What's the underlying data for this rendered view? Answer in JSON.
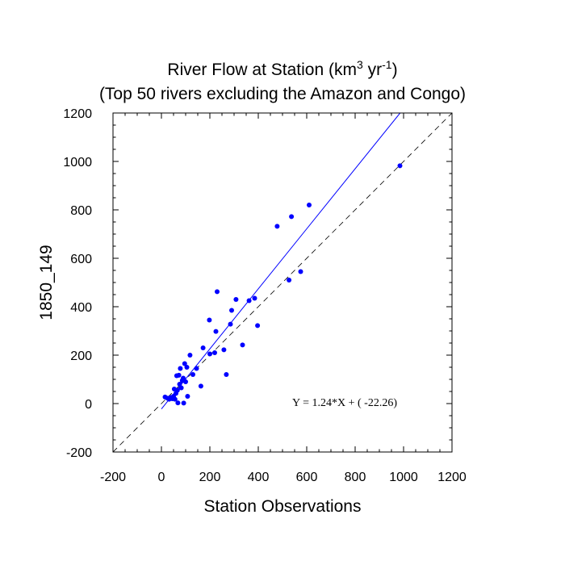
{
  "chart_data": {
    "type": "scatter",
    "title_main": "River Flow at Station (km",
    "title_sup1": "3",
    "title_mid": " yr",
    "title_sup2": "-1",
    "title_end": ")",
    "subtitle": "(Top 50 rivers excluding the Amazon and Congo)",
    "xlabel": "Station Observations",
    "ylabel": "1850_149",
    "xlim": [
      -200,
      1200
    ],
    "ylim": [
      -200,
      1200
    ],
    "x_ticks": [
      -200,
      0,
      200,
      400,
      600,
      800,
      1000,
      1200
    ],
    "y_ticks": [
      -200,
      0,
      200,
      400,
      600,
      800,
      1000,
      1200
    ],
    "x_tick_labels": [
      "-200",
      "0",
      "200",
      "400",
      "600",
      "800",
      "1000",
      "1200"
    ],
    "y_tick_labels": [
      "-200",
      "0",
      "200",
      "400",
      "600",
      "800",
      "1000",
      "1200"
    ],
    "grid": false,
    "point_color": "#0000ff",
    "fit_line": {
      "slope": 1.24,
      "intercept": -22.26,
      "color": "#0000ff"
    },
    "identity_line": {
      "color": "#000000",
      "style": "dashed"
    },
    "equation_text": "Y =  1.24*X + (  -22.26)",
    "points": [
      {
        "x": 15,
        "y": 27
      },
      {
        "x": 25,
        "y": 22
      },
      {
        "x": 32,
        "y": 18
      },
      {
        "x": 38,
        "y": 25
      },
      {
        "x": 45,
        "y": 20
      },
      {
        "x": 50,
        "y": 30
      },
      {
        "x": 53,
        "y": 60
      },
      {
        "x": 56,
        "y": 18
      },
      {
        "x": 60,
        "y": 42
      },
      {
        "x": 63,
        "y": 115
      },
      {
        "x": 66,
        "y": 55
      },
      {
        "x": 68,
        "y": 3
      },
      {
        "x": 72,
        "y": 117
      },
      {
        "x": 75,
        "y": 80
      },
      {
        "x": 78,
        "y": 145
      },
      {
        "x": 82,
        "y": 65
      },
      {
        "x": 86,
        "y": 95
      },
      {
        "x": 90,
        "y": 105
      },
      {
        "x": 92,
        "y": 2
      },
      {
        "x": 96,
        "y": 165
      },
      {
        "x": 100,
        "y": 90
      },
      {
        "x": 105,
        "y": 150
      },
      {
        "x": 108,
        "y": 30
      },
      {
        "x": 118,
        "y": 200
      },
      {
        "x": 130,
        "y": 120
      },
      {
        "x": 145,
        "y": 145
      },
      {
        "x": 163,
        "y": 72
      },
      {
        "x": 172,
        "y": 230
      },
      {
        "x": 198,
        "y": 345
      },
      {
        "x": 200,
        "y": 205
      },
      {
        "x": 220,
        "y": 210
      },
      {
        "x": 225,
        "y": 298
      },
      {
        "x": 230,
        "y": 462
      },
      {
        "x": 258,
        "y": 222
      },
      {
        "x": 268,
        "y": 120
      },
      {
        "x": 285,
        "y": 328
      },
      {
        "x": 290,
        "y": 385
      },
      {
        "x": 308,
        "y": 430
      },
      {
        "x": 335,
        "y": 242
      },
      {
        "x": 362,
        "y": 425
      },
      {
        "x": 385,
        "y": 435
      },
      {
        "x": 397,
        "y": 322
      },
      {
        "x": 478,
        "y": 732
      },
      {
        "x": 527,
        "y": 510
      },
      {
        "x": 537,
        "y": 772
      },
      {
        "x": 575,
        "y": 545
      },
      {
        "x": 610,
        "y": 820
      },
      {
        "x": 985,
        "y": 982
      }
    ]
  }
}
